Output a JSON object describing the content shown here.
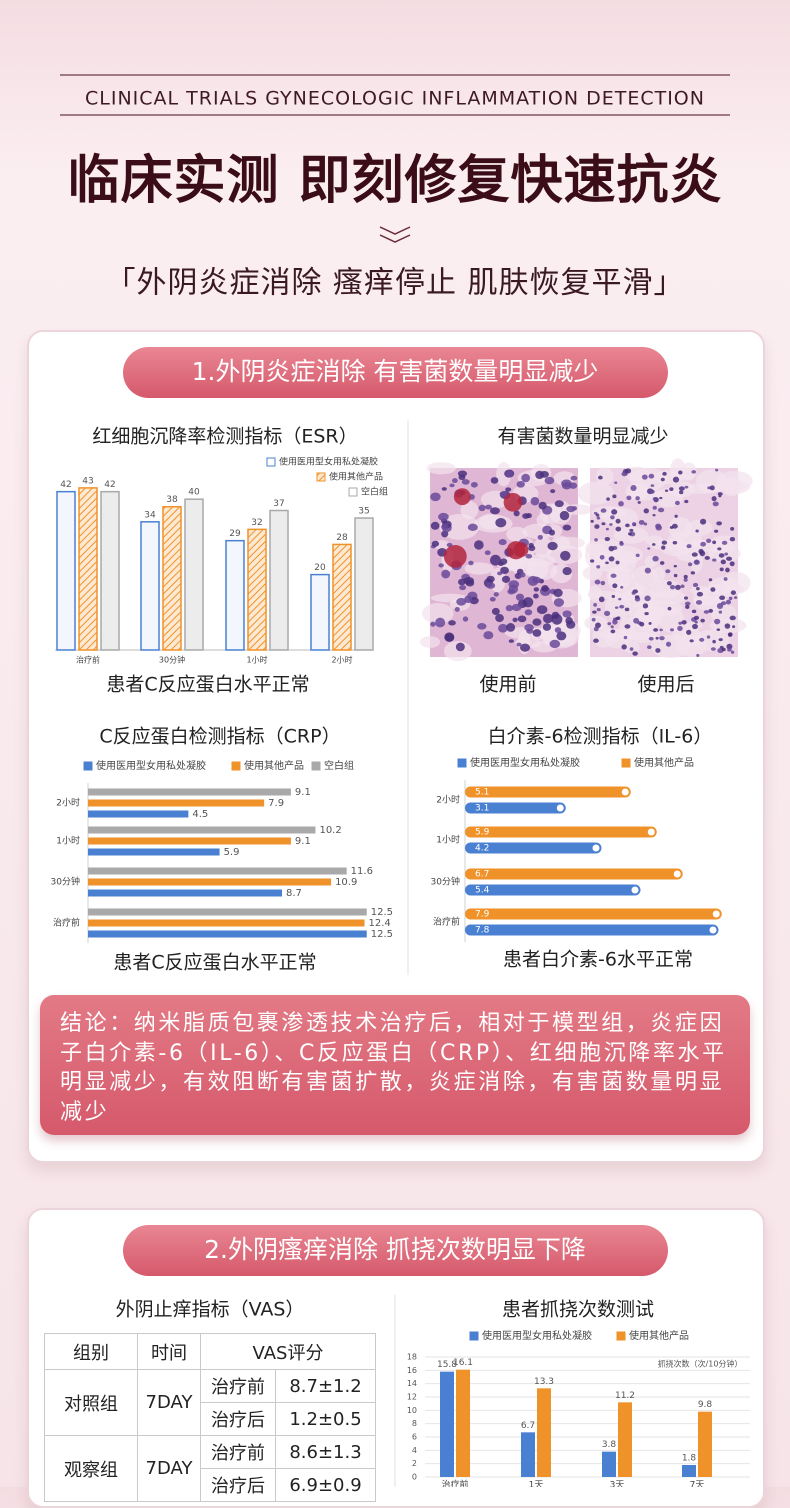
{
  "header": {
    "subtitle_en": "CLINICAL TRIALS GYNECOLOGIC INFLAMMATION DETECTION",
    "title": "临床实测 即刻修复快速抗炎",
    "tagline": "「外阴炎症消除 瘙痒停止 肌肤恢复平滑」"
  },
  "section1": {
    "heading": "1.外阴炎症消除 有害菌数量明显减少",
    "image_title": "有害菌数量明显减少",
    "image_labels": [
      "使用前",
      "使用后"
    ],
    "conclusion": "结论：纳米脂质包裹渗透技术治疗后，相对于模型组，炎症因子白介素-6（IL-6）、C反应蛋白（CRP）、红细胞沉降率水平明显减少，有效阻断有害菌扩散，炎症消除，有害菌数量明显减少"
  },
  "section2": {
    "heading": "2.外阴瘙痒消除 抓挠次数明显下降",
    "table": {
      "title": "外阴止痒指标（VAS）",
      "columns": [
        "组别",
        "时间",
        "VAS评分"
      ],
      "groups": [
        {
          "name": "对照组",
          "time": "7DAY",
          "rows": [
            [
              "治疗前",
              "8.7±1.2"
            ],
            [
              "治疗后",
              "1.2±0.5"
            ]
          ]
        },
        {
          "name": "观察组",
          "time": "7DAY",
          "rows": [
            [
              "治疗前",
              "8.6±1.3"
            ],
            [
              "治疗后",
              "6.9±0.9"
            ]
          ]
        }
      ]
    }
  },
  "chart_data": [
    {
      "type": "bar",
      "title": "红细胞沉降率检测指标（ESR）",
      "caption": "患者C反应蛋白水平正常",
      "categories": [
        "治疗前",
        "30分钟",
        "1小时",
        "2小时"
      ],
      "series": [
        {
          "name": "使用医用型女用私处凝胶",
          "color": "#4a80d2",
          "values": [
            42,
            34,
            29,
            20
          ]
        },
        {
          "name": "使用其他产品",
          "color": "#f0922a",
          "values": [
            43,
            38,
            32,
            28
          ]
        },
        {
          "name": "空白组",
          "color": "#a9a9a9",
          "values": [
            42,
            40,
            37,
            35
          ]
        }
      ]
    },
    {
      "type": "barh",
      "title": "C反应蛋白检测指标（CRP）",
      "caption": "患者C反应蛋白水平正常",
      "categories": [
        "2小时",
        "1小时",
        "30分钟",
        "治疗前"
      ],
      "series": [
        {
          "name": "使用医用型女用私处凝胶",
          "color": "#4a80d2",
          "values": [
            4.5,
            5.9,
            8.7,
            12.5
          ]
        },
        {
          "name": "使用其他产品",
          "color": "#f0922a",
          "values": [
            7.9,
            9.1,
            10.9,
            12.4
          ]
        },
        {
          "name": "空白组",
          "color": "#a9a9a9",
          "values": [
            9.1,
            10.2,
            11.6,
            12.5
          ]
        }
      ]
    },
    {
      "type": "barh",
      "title": "白介素-6检测指标（IL-6）",
      "caption": "患者白介素-6水平正常",
      "categories": [
        "2小时",
        "1小时",
        "30分钟",
        "治疗前"
      ],
      "series": [
        {
          "name": "使用医用型女用私处凝胶",
          "color": "#4a80d2",
          "values": [
            3.1,
            4.2,
            5.4,
            7.8
          ]
        },
        {
          "name": "使用其他产品",
          "color": "#f0922a",
          "values": [
            5.1,
            5.9,
            6.7,
            7.9
          ]
        }
      ]
    },
    {
      "type": "bar",
      "title": "患者抓挠次数测试",
      "annotation": "抓挠次数（次/10分钟）",
      "categories": [
        "治疗前",
        "1天",
        "3天",
        "7天"
      ],
      "ylim": [
        0,
        18
      ],
      "yticks": [
        0,
        2,
        4,
        6,
        8,
        10,
        12,
        14,
        16,
        18
      ],
      "grid": true,
      "series": [
        {
          "name": "使用医用型女用私处凝胶",
          "color": "#4a80d2",
          "values": [
            15.8,
            6.7,
            3.8,
            1.8
          ]
        },
        {
          "name": "使用其他产品",
          "color": "#f0922a",
          "values": [
            16.1,
            13.3,
            11.2,
            9.8
          ]
        }
      ]
    }
  ]
}
